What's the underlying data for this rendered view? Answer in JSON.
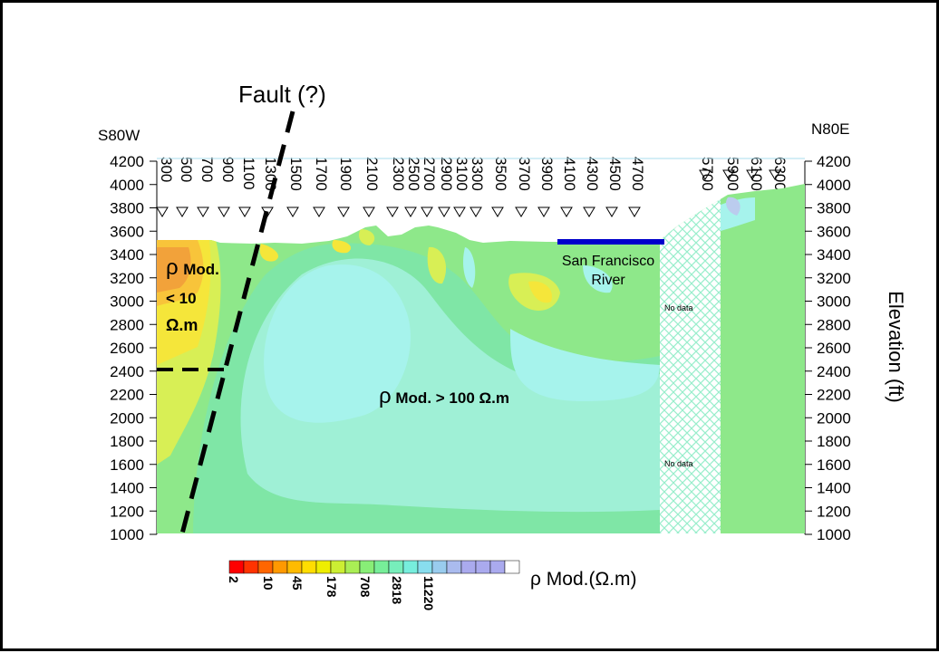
{
  "title": "Fault (?)",
  "direction": {
    "left": "S80W",
    "right": "N80E"
  },
  "elevation_axis": {
    "label": "Elevation (ft)",
    "ticks": [
      4200,
      4000,
      3800,
      3600,
      3400,
      3200,
      3000,
      2800,
      2600,
      2400,
      2200,
      2000,
      1800,
      1600,
      1400,
      1200,
      1000
    ],
    "range": [
      1000,
      4200
    ]
  },
  "station_labels": [
    "300",
    "500",
    "700",
    "900",
    "1100",
    "1300",
    "1500",
    "1700",
    "1900",
    "2100",
    "2300",
    "2500",
    "2700",
    "2900",
    "3100",
    "3300",
    "3500",
    "3700",
    "3900",
    "4100",
    "4300",
    "4500",
    "4700",
    "5700",
    "5900",
    "6100",
    "6300"
  ],
  "annotations": {
    "low_zone": {
      "rho": "ρ",
      "line1": "Mod.",
      "line2": "< 10",
      "line3": "Ω.m"
    },
    "high_zone": {
      "rho": "ρ",
      "text": "Mod. > 100 Ω.m"
    },
    "river": {
      "line1": "San Francisco",
      "line2": "River"
    },
    "no_data": [
      "No data",
      "No data"
    ]
  },
  "colorbar": {
    "label_rho": "ρ",
    "label_text": "Mod.(Ω.m)",
    "tick_labels": [
      "2",
      "10",
      "45",
      "178",
      "708",
      "2818",
      "11220"
    ],
    "colors": [
      "#ff0000",
      "#ff3300",
      "#ff6600",
      "#ff9900",
      "#ffbb00",
      "#ffdd00",
      "#eeee00",
      "#ccee33",
      "#aaee55",
      "#88ee77",
      "#77ee99",
      "#77eebb",
      "#77eedd",
      "#88ddee",
      "#99ccee",
      "#aabbee",
      "#aaaaee",
      "#aaaaee",
      "#aaaaee",
      "#ffffff"
    ]
  },
  "colors": {
    "background_green": "#8ee88a",
    "high_resistivity": "#9ff0e4",
    "low_resistivity": "#f2a23a",
    "river_line": "#0000cc",
    "river_text": "#0033cc",
    "surface_line": "#aaddee"
  }
}
